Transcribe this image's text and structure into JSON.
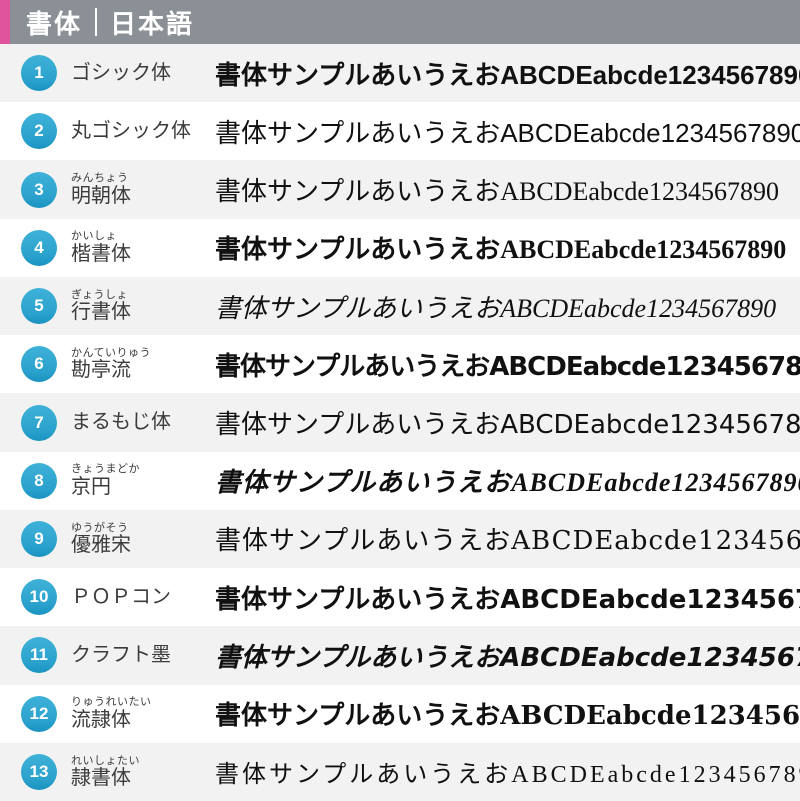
{
  "header": {
    "title_left": "書体",
    "title_right": "日本語"
  },
  "sample_text": "書体サンプルあいうえおABCDEabcde1234567890",
  "colors": {
    "accent_pink": "#e0549e",
    "header_gray": "#8a9095",
    "badge_blue": "#2fa8d4",
    "row_alt_bg": "#f2f2f2",
    "row_bg": "#ffffff",
    "text_dark": "#3c3c3c"
  },
  "rows": [
    {
      "number": "1",
      "furigana": "",
      "name": "ゴシック体",
      "style": "gothic"
    },
    {
      "number": "2",
      "furigana": "",
      "name": "丸ゴシック体",
      "style": "maru-gothic"
    },
    {
      "number": "3",
      "furigana": "みんちょう",
      "name": "明朝体",
      "style": "mincho"
    },
    {
      "number": "4",
      "furigana": "かいしょ",
      "name": "楷書体",
      "style": "kaisho"
    },
    {
      "number": "5",
      "furigana": "ぎょうしょ",
      "name": "行書体",
      "style": "gyosho"
    },
    {
      "number": "6",
      "furigana": "かんていりゅう",
      "name": "勘亭流",
      "style": "kantei"
    },
    {
      "number": "7",
      "furigana": "",
      "name": "まるもじ体",
      "style": "marumoji"
    },
    {
      "number": "8",
      "furigana": "きょうまどか",
      "name": "京円",
      "style": "kyoen"
    },
    {
      "number": "9",
      "furigana": "ゆうがそう",
      "name": "優雅宋",
      "style": "yugaso"
    },
    {
      "number": "10",
      "furigana": "",
      "name": "ＰＯＰコン",
      "style": "pop"
    },
    {
      "number": "11",
      "furigana": "",
      "name": "クラフト墨",
      "style": "craft"
    },
    {
      "number": "12",
      "furigana": "りゅうれいたい",
      "name": "流隷体",
      "style": "ryurei"
    },
    {
      "number": "13",
      "furigana": "れいしょたい",
      "name": "隷書体",
      "style": "reisho"
    }
  ]
}
